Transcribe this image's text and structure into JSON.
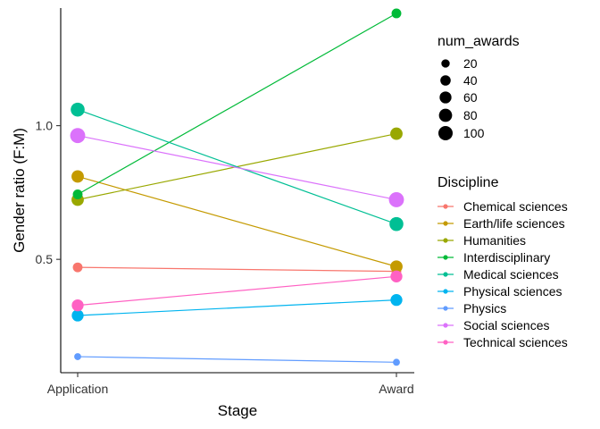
{
  "chart_data": {
    "type": "line",
    "xlabel": "Stage",
    "ylabel": "Gender ratio (F:M)",
    "categories": [
      "Application",
      "Award"
    ],
    "y_ticks": [
      0.5,
      1.0
    ],
    "y_tick_labels": [
      "0.5",
      "1.0"
    ],
    "ylim": [
      0.076,
      1.44
    ],
    "grid": false,
    "size_legend": {
      "title": "num_awards",
      "values": [
        20,
        40,
        60,
        80,
        100
      ],
      "labels": [
        "20",
        "40",
        "60",
        "80",
        "100"
      ]
    },
    "color_legend": {
      "title": "Discipline",
      "placement": "right"
    },
    "series": [
      {
        "name": "Chemical sciences",
        "color": "#F8766D",
        "values": [
          0.47,
          0.455
        ],
        "sizes": [
          33,
          33
        ]
      },
      {
        "name": "Earth/life sciences",
        "color": "#C49A00",
        "values": [
          0.81,
          0.473
        ],
        "sizes": [
          67,
          67
        ]
      },
      {
        "name": "Humanities",
        "color": "#99A800",
        "values": [
          0.723,
          0.97
        ],
        "sizes": [
          67,
          67
        ]
      },
      {
        "name": "Interdisciplinary",
        "color": "#00BA38",
        "values": [
          0.743,
          1.42
        ],
        "sizes": [
          33,
          33
        ]
      },
      {
        "name": "Medical sciences",
        "color": "#00BF94",
        "values": [
          1.06,
          0.632
        ],
        "sizes": [
          93,
          93
        ]
      },
      {
        "name": "Physical sciences",
        "color": "#00B4EF",
        "values": [
          0.29,
          0.348
        ],
        "sizes": [
          60,
          60
        ]
      },
      {
        "name": "Physics",
        "color": "#619CFF",
        "values": [
          0.136,
          0.115
        ],
        "sizes": [
          10,
          10
        ]
      },
      {
        "name": "Social sciences",
        "color": "#DB72FB",
        "values": [
          0.963,
          0.723
        ],
        "sizes": [
          115,
          115
        ]
      },
      {
        "name": "Technical sciences",
        "color": "#FF61C3",
        "values": [
          0.328,
          0.436
        ],
        "sizes": [
          60,
          60
        ]
      }
    ]
  }
}
